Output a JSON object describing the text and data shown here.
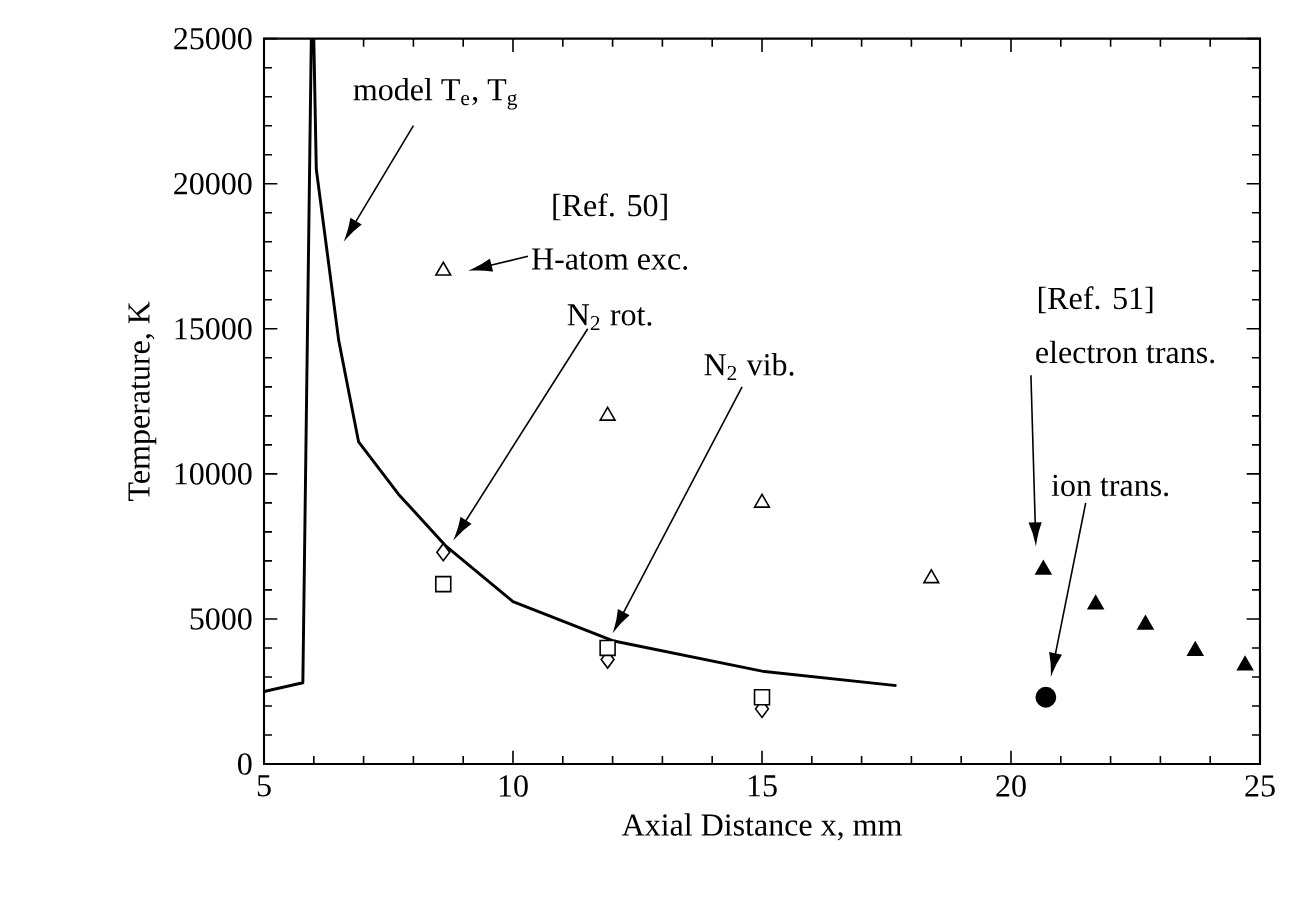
{
  "chart_data": {
    "type": "scatter",
    "xlabel": "Axial Distance x, mm",
    "ylabel": "Temperature, K",
    "xlim": [
      5,
      25
    ],
    "ylim": [
      0,
      25000
    ],
    "xticks": [
      5,
      10,
      15,
      20,
      25
    ],
    "yticks": [
      0,
      5000,
      10000,
      15000,
      20000,
      25000
    ],
    "grid": false,
    "series": [
      {
        "type": "line",
        "color": "#000000",
        "marker": "none",
        "line_style": "solid",
        "x": [
          5,
          5.78,
          5.95,
          6.0,
          6.05,
          6.5,
          6.9,
          7.7,
          8.66,
          10,
          12,
          15,
          17.7
        ],
        "values": [
          2500,
          2800,
          25000,
          25000,
          20500,
          14600,
          11100,
          9300,
          7500,
          5600,
          4250,
          3200,
          2700
        ]
      },
      {
        "color": "#000000",
        "marker": "triangle",
        "x": [
          8.6,
          11.9,
          15,
          18.4
        ],
        "values": [
          17000,
          12000,
          9000,
          6400
        ]
      },
      {
        "color": "#000000",
        "marker": "diamond",
        "x": [
          8.6,
          11.9,
          15
        ],
        "values": [
          7300,
          3600,
          1900
        ]
      },
      {
        "color": "#000000",
        "marker": "square",
        "x": [
          8.6,
          11.9,
          15
        ],
        "values": [
          6200,
          4000,
          2300
        ]
      },
      {
        "color": "#000000",
        "marker": "triangle",
        "x": [
          20.65,
          21.7,
          22.7,
          23.7,
          24.7
        ],
        "values": [
          6700,
          5500,
          4800,
          3900,
          3400
        ]
      },
      {
        "color": "#000000",
        "marker": "circle",
        "x": [
          20.7
        ],
        "values": [
          2300
        ]
      }
    ],
    "annotations": [
      "model T$_{e}$, T$_{g}$",
      "[Ref. 50]",
      "H-atom exc.",
      "N$_{2}$ rot.",
      "N$_{2}$ vib.",
      "[Ref. 51]",
      "electron trans.",
      "ion trans."
    ]
  }
}
